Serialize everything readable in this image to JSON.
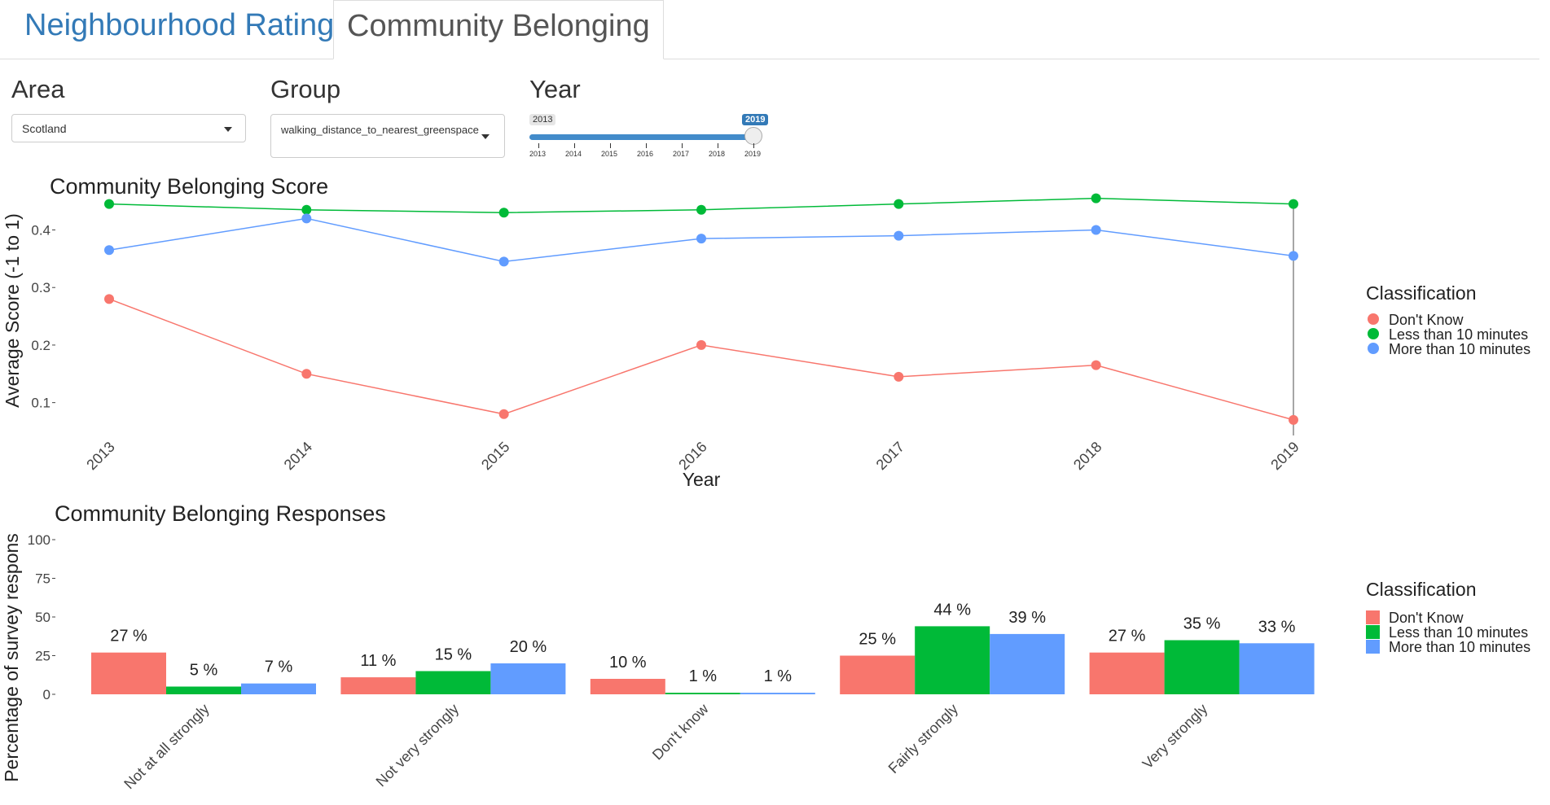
{
  "tabs": [
    {
      "label": "Neighbourhood Rating",
      "active": false
    },
    {
      "label": "Community Belonging",
      "active": true
    }
  ],
  "controls": {
    "area": {
      "label": "Area",
      "value": "Scotland"
    },
    "group": {
      "label": "Group",
      "value": "walking_distance_to_nearest_greenspace"
    },
    "year": {
      "label": "Year",
      "min": 2013,
      "max": 2019,
      "value": 2019,
      "min_label": "2013",
      "value_label": "2019",
      "ticks": [
        "2013",
        "2014",
        "2015",
        "2016",
        "2017",
        "2018",
        "2019"
      ]
    }
  },
  "colors": {
    "dont_know": "#F8766D",
    "less": "#00BA38",
    "more": "#619CFF",
    "accent": "#337ab7"
  },
  "chart_data": [
    {
      "type": "line",
      "title": "Community Belonging Score",
      "xlabel": "Year",
      "ylabel": "Average Score (-1 to 1)",
      "x": [
        "2013",
        "2014",
        "2015",
        "2016",
        "2017",
        "2018",
        "2019"
      ],
      "ylim": [
        0.05,
        0.47
      ],
      "yticks": [
        "0.1",
        "0.2",
        "0.3",
        "0.4"
      ],
      "hover_x": "2019",
      "legend_title": "Classification",
      "series": [
        {
          "name": "Don't Know",
          "color": "#F8766D",
          "values": [
            0.28,
            0.15,
            0.08,
            0.2,
            0.145,
            0.165,
            0.07
          ]
        },
        {
          "name": "Less than 10 minutes",
          "color": "#00BA38",
          "values": [
            0.445,
            0.435,
            0.43,
            0.435,
            0.445,
            0.455,
            0.445
          ]
        },
        {
          "name": "More than 10 minutes",
          "color": "#619CFF",
          "values": [
            0.365,
            0.42,
            0.345,
            0.385,
            0.39,
            0.4,
            0.355
          ]
        }
      ]
    },
    {
      "type": "bar",
      "title": "Community Belonging Responses",
      "ylabel": "Percentage of survey respons",
      "categories": [
        "Not at all strongly",
        "Not very strongly",
        "Don't know",
        "Fairly strongly",
        "Very strongly"
      ],
      "ylim": [
        0,
        100
      ],
      "yticks": [
        "0",
        "25",
        "50",
        "75",
        "100"
      ],
      "legend_title": "Classification",
      "series": [
        {
          "name": "Don't Know",
          "color": "#F8766D",
          "values": [
            27,
            11,
            10,
            25,
            27
          ],
          "labels": [
            "27 %",
            "11 %",
            "10 %",
            "25 %",
            "27 %"
          ]
        },
        {
          "name": "Less than 10 minutes",
          "color": "#00BA38",
          "values": [
            5,
            15,
            1,
            44,
            35
          ],
          "labels": [
            "5 %",
            "15 %",
            "1 %",
            "44 %",
            "35 %"
          ]
        },
        {
          "name": "More than 10 minutes",
          "color": "#619CFF",
          "values": [
            7,
            20,
            1,
            39,
            33
          ],
          "labels": [
            "7 %",
            "20 %",
            "1 %",
            "39 %",
            "33 %"
          ]
        }
      ]
    }
  ]
}
